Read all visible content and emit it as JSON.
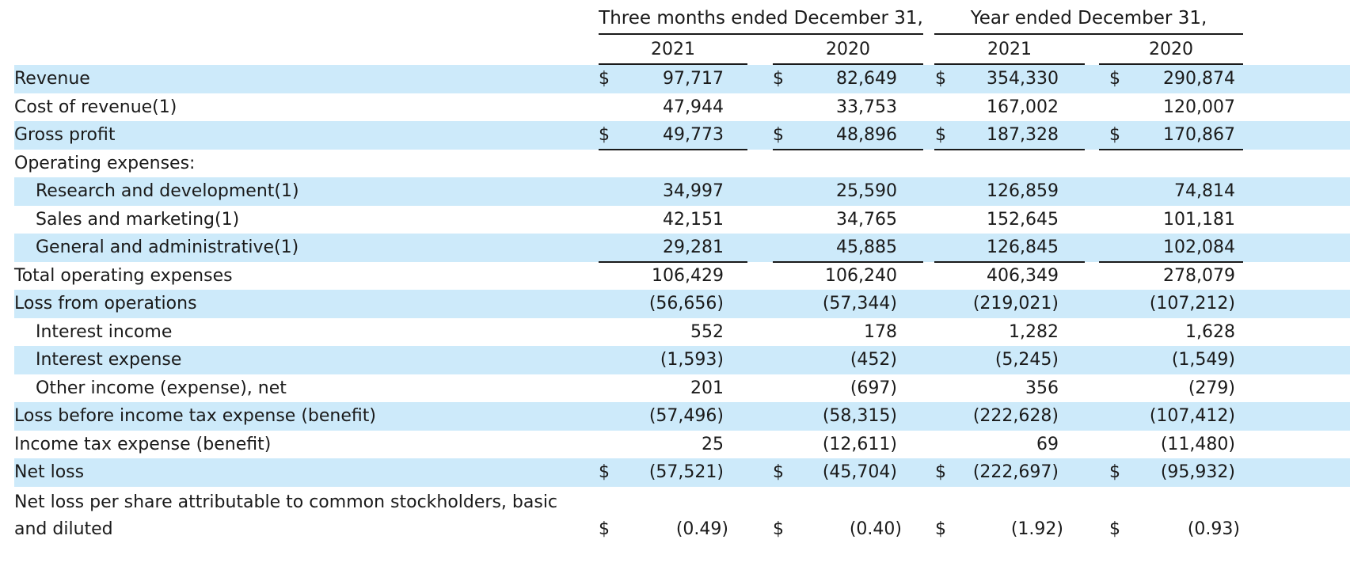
{
  "header": {
    "groups": [
      "Three months ended December 31,",
      "Year ended December 31,"
    ],
    "years": [
      "2021",
      "2020",
      "2021",
      "2020"
    ]
  },
  "currency_symbol": "$",
  "rows": [
    {
      "label": "Revenue",
      "indent": false,
      "values": [
        "97,717",
        "82,649",
        "354,330",
        "290,874"
      ],
      "dollar": true,
      "shaded": true
    },
    {
      "label": "Cost of revenue(1)",
      "indent": false,
      "values": [
        "47,944",
        "33,753",
        "167,002",
        "120,007"
      ],
      "dollar": false,
      "shaded": false,
      "underline": true
    },
    {
      "label": "Gross profit",
      "indent": false,
      "values": [
        "49,773",
        "48,896",
        "187,328",
        "170,867"
      ],
      "dollar": true,
      "shaded": true,
      "underline": true
    },
    {
      "label": "Operating expenses:",
      "indent": false,
      "values": [
        "",
        "",
        "",
        ""
      ],
      "dollar": false,
      "shaded": false
    },
    {
      "label": "Research and development(1)",
      "indent": true,
      "values": [
        "34,997",
        "25,590",
        "126,859",
        "74,814"
      ],
      "dollar": false,
      "shaded": true
    },
    {
      "label": "Sales and marketing(1)",
      "indent": true,
      "values": [
        "42,151",
        "34,765",
        "152,645",
        "101,181"
      ],
      "dollar": false,
      "shaded": false
    },
    {
      "label": "General and administrative(1)",
      "indent": true,
      "values": [
        "29,281",
        "45,885",
        "126,845",
        "102,084"
      ],
      "dollar": false,
      "shaded": true,
      "underline": true
    },
    {
      "label": "Total operating expenses",
      "indent": false,
      "values": [
        "106,429",
        "106,240",
        "406,349",
        "278,079"
      ],
      "dollar": false,
      "shaded": false,
      "underline": true
    },
    {
      "label": "Loss from operations",
      "indent": false,
      "values": [
        "(56,656)",
        "(57,344)",
        "(219,021)",
        "(107,212)"
      ],
      "dollar": false,
      "shaded": true
    },
    {
      "label": "Interest income",
      "indent": true,
      "values": [
        "552",
        "178",
        "1,282",
        "1,628"
      ],
      "dollar": false,
      "shaded": false
    },
    {
      "label": "Interest expense",
      "indent": true,
      "values": [
        "(1,593)",
        "(452)",
        "(5,245)",
        "(1,549)"
      ],
      "dollar": false,
      "shaded": true
    },
    {
      "label": "Other income (expense), net",
      "indent": true,
      "values": [
        "201",
        "(697)",
        "356",
        "(279)"
      ],
      "dollar": false,
      "shaded": false,
      "underline": true
    },
    {
      "label": "Loss before income tax expense (benefit)",
      "indent": false,
      "values": [
        "(57,496)",
        "(58,315)",
        "(222,628)",
        "(107,412)"
      ],
      "dollar": false,
      "shaded": true
    },
    {
      "label": "Income tax expense (benefit)",
      "indent": false,
      "values": [
        "25",
        "(12,611)",
        "69",
        "(11,480)"
      ],
      "dollar": false,
      "shaded": false,
      "underline": true
    },
    {
      "label": "Net loss",
      "indent": false,
      "values": [
        "(57,521)",
        "(45,704)",
        "(222,697)",
        "(95,932)"
      ],
      "dollar": true,
      "shaded": true
    }
  ],
  "eps_row": {
    "label_line1": "Net loss per share attributable to common stockholders, basic",
    "label_line2": "and diluted",
    "values": [
      "(0.49)",
      "(0.40)",
      "(1.92)",
      "(0.93)"
    ],
    "dollar": true
  },
  "colors": {
    "shade": "#cdeafa",
    "text": "#1a1a1a"
  }
}
